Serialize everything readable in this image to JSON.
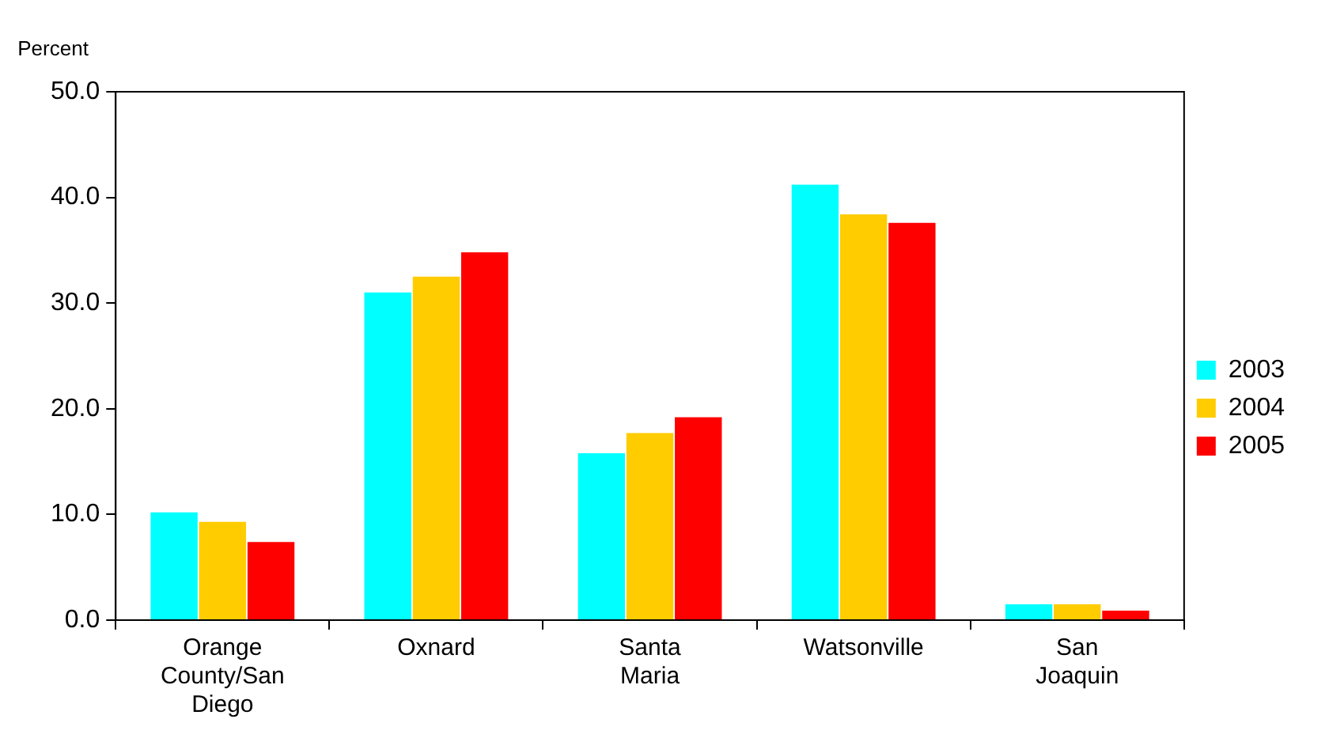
{
  "chart_data": {
    "type": "bar",
    "ylabel": "Percent",
    "categories": [
      "Orange County/San Diego",
      "Oxnard",
      "Santa Maria",
      "Watsonville",
      "San Joaquin"
    ],
    "series": [
      {
        "name": "2003",
        "color": "#00ffff",
        "values": [
          10.2,
          31.0,
          15.8,
          41.2,
          1.5
        ]
      },
      {
        "name": "2004",
        "color": "#ffcc00",
        "values": [
          9.3,
          32.5,
          17.7,
          38.4,
          1.5
        ]
      },
      {
        "name": "2005",
        "color": "#ff0000",
        "values": [
          7.4,
          34.8,
          19.2,
          37.6,
          0.9
        ]
      }
    ],
    "ylim": [
      0,
      50
    ],
    "yticks": [
      {
        "value": 0,
        "label": "0.0"
      },
      {
        "value": 10,
        "label": "10.0"
      },
      {
        "value": 20,
        "label": "20.0"
      },
      {
        "value": 30,
        "label": "30.0"
      },
      {
        "value": 40,
        "label": "40.0"
      },
      {
        "value": 50,
        "label": "50.0"
      }
    ],
    "legend": "right"
  }
}
